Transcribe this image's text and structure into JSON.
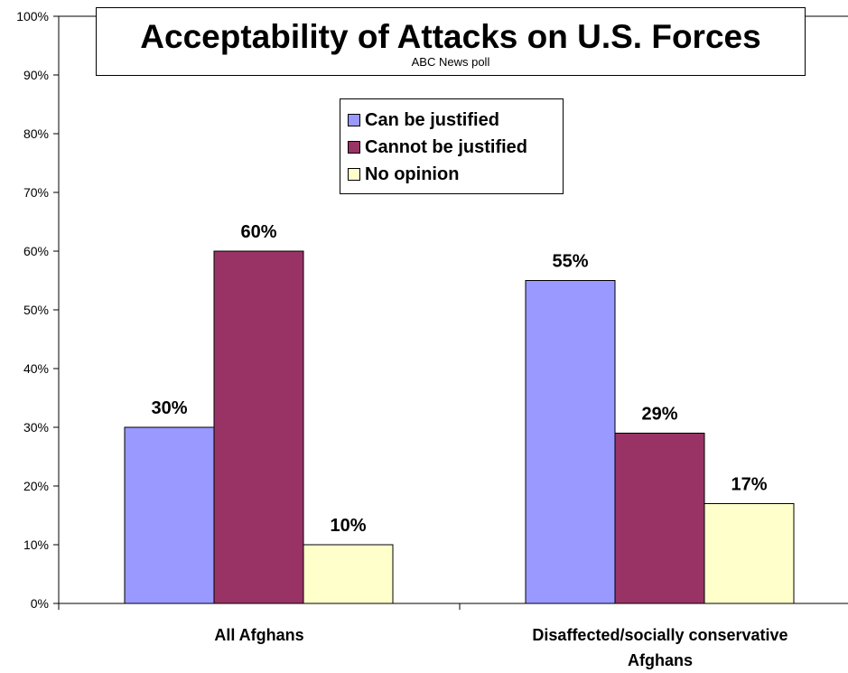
{
  "chart_data": {
    "type": "bar",
    "title": "Acceptability of Attacks on U.S. Forces",
    "subtitle": "ABC News poll",
    "categories": [
      "All Afghans",
      "Disaffected/socially conservative Afghans"
    ],
    "category_lines": [
      [
        "All Afghans"
      ],
      [
        "Disaffected/socially conservative",
        "Afghans"
      ]
    ],
    "series": [
      {
        "name": "Can be justified",
        "values": [
          30,
          55
        ],
        "labels": [
          "30%",
          "55%"
        ],
        "color": "#9999ff"
      },
      {
        "name": "Cannot be justified",
        "values": [
          60,
          29
        ],
        "labels": [
          "60%",
          "29%"
        ],
        "color": "#993366"
      },
      {
        "name": "No opinion",
        "values": [
          10,
          17
        ],
        "labels": [
          "10%",
          "17%"
        ],
        "color": "#ffffcc"
      }
    ],
    "ylim": [
      0,
      100
    ],
    "yticks": [
      "0%",
      "10%",
      "20%",
      "30%",
      "40%",
      "50%",
      "60%",
      "70%",
      "80%",
      "90%",
      "100%"
    ],
    "grid": false,
    "legend_position": "top-center",
    "xlabel": "",
    "ylabel": ""
  }
}
